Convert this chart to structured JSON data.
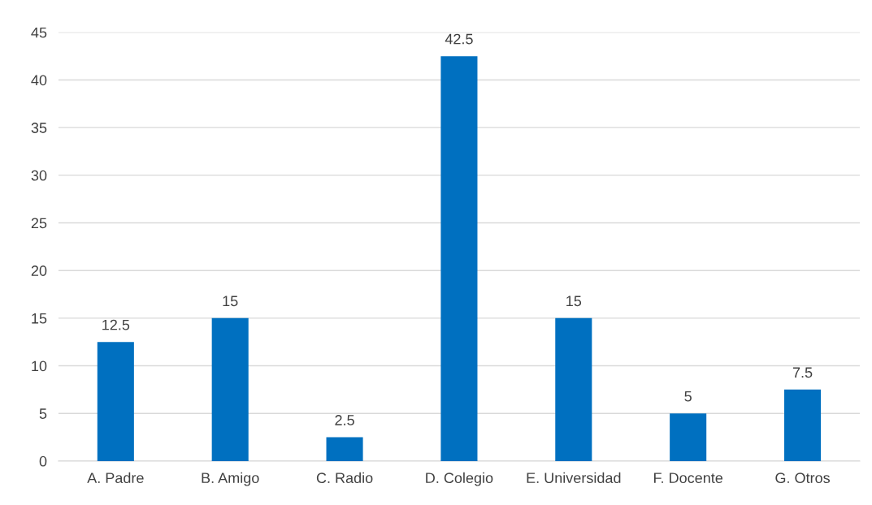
{
  "chart_data": {
    "type": "bar",
    "categories": [
      "A. Padre",
      "B. Amigo",
      "C. Radio",
      "D. Colegio",
      "E. Universidad",
      "F. Docente",
      "G. Otros"
    ],
    "values": [
      12.5,
      15,
      2.5,
      42.5,
      15,
      5,
      7.5
    ],
    "color": "#0070c0",
    "ylim": [
      0,
      45
    ],
    "yticks": [
      0,
      5,
      10,
      15,
      20,
      25,
      30,
      35,
      40,
      45
    ],
    "grid": "y",
    "data_labels": true
  }
}
